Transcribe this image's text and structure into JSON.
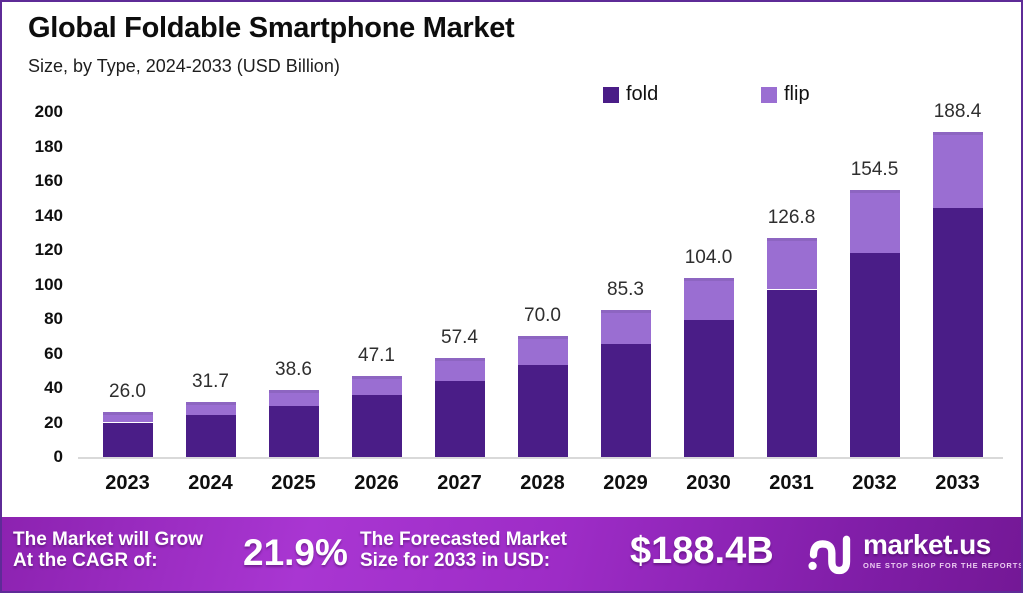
{
  "header": {
    "title": "Global Foldable Smartphone Market",
    "subtitle": "Size, by Type, 2024-2033 (USD Billion)"
  },
  "legend": {
    "items": [
      {
        "label": "fold",
        "color": "#4a1d87"
      },
      {
        "label": "flip",
        "color": "#9a6ed2"
      }
    ]
  },
  "chart_data": {
    "type": "bar",
    "stacked": true,
    "title": "Global Foldable Smartphone Market Size, by Type, 2024-2033 (USD Billion)",
    "categories": [
      "2023",
      "2024",
      "2025",
      "2026",
      "2027",
      "2028",
      "2029",
      "2030",
      "2031",
      "2032",
      "2033"
    ],
    "series": [
      {
        "name": "fold",
        "color": "#4a1d87",
        "values": [
          20.0,
          24.2,
          29.5,
          36.0,
          44.0,
          53.6,
          65.3,
          79.6,
          97.1,
          118.3,
          144.3
        ]
      },
      {
        "name": "flip",
        "color": "#9a6ed2",
        "values": [
          6.0,
          7.5,
          9.1,
          11.1,
          13.4,
          16.4,
          20.0,
          24.4,
          29.7,
          36.2,
          44.1
        ]
      }
    ],
    "totals": [
      26.0,
      31.7,
      38.6,
      47.1,
      57.4,
      70.0,
      85.3,
      104.0,
      126.8,
      154.5,
      188.4
    ],
    "total_labels": [
      "26.0",
      "31.7",
      "38.6",
      "47.1",
      "57.4",
      "70.0",
      "85.3",
      "104.0",
      "126.8",
      "154.5",
      "188.4"
    ],
    "xlabel": "",
    "ylabel": "",
    "ylim": [
      0,
      200
    ],
    "ytick_step": 20,
    "grid": false,
    "legend_position": "top-right"
  },
  "footer": {
    "cagr_label_line1": "The Market will Grow",
    "cagr_label_line2": "At the CAGR of:",
    "cagr_value": "21.9%",
    "forecast_label_line1": "The Forecasted Market",
    "forecast_label_line2": "Size for 2033 in USD:",
    "forecast_value": "$188.4B",
    "brand": {
      "name": "market.us",
      "tagline": "ONE STOP SHOP FOR THE REPORTS"
    }
  },
  "colors": {
    "border": "#5e2b97",
    "baseline": "#d9d9d9",
    "footer_gradient_start": "#8c22b0",
    "footer_gradient_mid": "#a936d2",
    "footer_gradient_end": "#741896"
  }
}
